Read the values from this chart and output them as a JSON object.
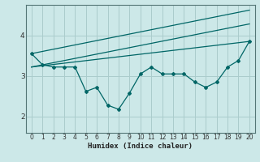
{
  "xlabel": "Humidex (Indice chaleur)",
  "bg_color": "#cce8e8",
  "grid_color": "#aacccc",
  "line_color": "#006666",
  "xlim": [
    -0.5,
    20.5
  ],
  "ylim": [
    1.6,
    4.75
  ],
  "yticks": [
    2,
    3,
    4
  ],
  "xticks": [
    0,
    1,
    2,
    3,
    4,
    5,
    6,
    7,
    8,
    9,
    10,
    11,
    12,
    13,
    14,
    15,
    16,
    17,
    18,
    19,
    20
  ],
  "line1_x": [
    0,
    1,
    2,
    3,
    4,
    5,
    6,
    7,
    8,
    9,
    10,
    11,
    12,
    13,
    14,
    15,
    16,
    17,
    18,
    19,
    20
  ],
  "line1_y": [
    3.55,
    3.28,
    3.22,
    3.22,
    3.22,
    2.62,
    2.72,
    2.28,
    2.18,
    2.58,
    3.05,
    3.22,
    3.05,
    3.05,
    3.05,
    2.85,
    2.72,
    2.85,
    3.22,
    3.38,
    3.85
  ],
  "line2_x": [
    0,
    20
  ],
  "line2_y": [
    3.55,
    4.62
  ],
  "line3_x": [
    0,
    20
  ],
  "line3_y": [
    3.22,
    4.28
  ],
  "line4_x": [
    0,
    20
  ],
  "line4_y": [
    3.22,
    3.85
  ]
}
